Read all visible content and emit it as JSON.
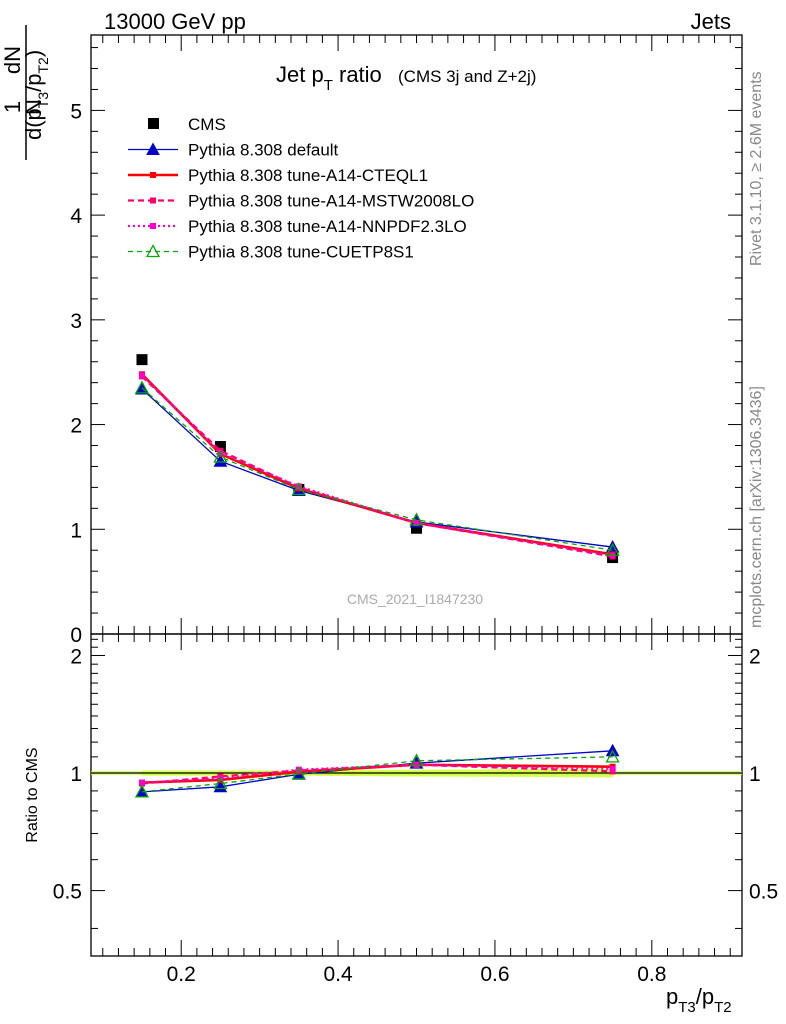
{
  "header": {
    "left": "13000 GeV pp",
    "right": "Jets"
  },
  "title": {
    "main": "Jet p",
    "sub": "T",
    "rest": " ratio",
    "small": "(CMS 3j and Z+2j)"
  },
  "side_labels": {
    "rivet": "Rivet 3.1.10, ≥ 2.6M events",
    "mcplots": "mcplots.cern.ch [arXiv:1306.3436]"
  },
  "analysis_id": "CMS_2021_I1847230",
  "y_label_main": {
    "one": "1",
    "N": "N",
    "dN": "dN",
    "d": "d(p",
    "t3": "T3",
    "slash": "/p",
    "t2": "T2",
    "close": ")"
  },
  "y_label_ratio": "Ratio to CMS",
  "x_label": {
    "p1": "p",
    "s1": "T3",
    "mid": "/p",
    "s2": "T2"
  },
  "colors": {
    "cms": "#000000",
    "default": "#0000cc",
    "cteql1": "#ff0000",
    "mstw": "#ff0066",
    "nnpdf": "#ff00cc",
    "cuetp8s1": "#00aa00",
    "band": "#ccff33"
  },
  "chart_data": [
    {
      "type": "line",
      "panel": "main",
      "xlim": [
        0.085,
        0.915
      ],
      "ylim": [
        0,
        5.72
      ],
      "yticks": [
        0,
        1,
        2,
        3,
        4,
        5
      ],
      "ytick_labels": [
        "0",
        "1",
        "2",
        "3",
        "4",
        "5"
      ],
      "legend_position": "top-left",
      "x": [
        0.15,
        0.25,
        0.35,
        0.5,
        0.75
      ],
      "series": [
        {
          "name": "CMS",
          "key": "cms",
          "style": "data",
          "values": [
            2.62,
            1.79,
            1.38,
            1.01,
            0.73
          ],
          "errors": [
            0.03,
            0.02,
            0.02,
            0.02,
            0.02
          ]
        },
        {
          "name": "Pythia 8.308 default",
          "key": "default",
          "style": "solid-thin",
          "marker": "triangle-filled",
          "values": [
            2.34,
            1.65,
            1.37,
            1.07,
            0.83
          ]
        },
        {
          "name": "Pythia 8.308 tune-A14-CTEQL1",
          "key": "cteql1",
          "style": "solid-thick",
          "marker": "square",
          "values": [
            2.48,
            1.72,
            1.39,
            1.06,
            0.76
          ]
        },
        {
          "name": "Pythia 8.308 tune-A14-MSTW2008LO",
          "key": "mstw",
          "style": "dashed",
          "marker": "square",
          "values": [
            2.46,
            1.75,
            1.4,
            1.06,
            0.74
          ]
        },
        {
          "name": "Pythia 8.308 tune-A14-NNPDF2.3LO",
          "key": "nnpdf",
          "style": "dotted",
          "marker": "square",
          "values": [
            2.47,
            1.73,
            1.41,
            1.06,
            0.75
          ]
        },
        {
          "name": "Pythia 8.308 tune-CUETP8S1",
          "key": "cuetp8s1",
          "style": "dashed-thin",
          "marker": "triangle-open",
          "values": [
            2.35,
            1.69,
            1.38,
            1.09,
            0.8
          ]
        }
      ]
    },
    {
      "type": "line",
      "panel": "ratio",
      "xlim": [
        0.085,
        0.915
      ],
      "ylim": [
        0.34,
        2.27
      ],
      "yticks": [
        0.5,
        1,
        2
      ],
      "ytick_labels": [
        "0.5",
        "1",
        "2"
      ],
      "xticks": [
        0.2,
        0.4,
        0.6,
        0.8
      ],
      "xtick_labels": [
        "0.2",
        "0.4",
        "0.6",
        "0.8"
      ],
      "x": [
        0.15,
        0.25,
        0.35,
        0.5,
        0.75
      ],
      "band": {
        "lower": [
          0.985,
          0.985,
          0.985,
          0.98,
          0.975
        ],
        "upper": [
          1.015,
          1.015,
          1.015,
          1.02,
          1.025
        ]
      },
      "series": [
        {
          "name": "Pythia 8.308 default",
          "key": "default",
          "style": "solid-thin",
          "marker": "triangle-filled",
          "values": [
            0.895,
            0.922,
            0.993,
            1.06,
            1.14
          ]
        },
        {
          "name": "Pythia 8.308 tune-A14-CTEQL1",
          "key": "cteql1",
          "style": "solid-thick",
          "marker": "square",
          "values": [
            0.945,
            0.96,
            1.008,
            1.05,
            1.038
          ]
        },
        {
          "name": "Pythia 8.308 tune-A14-MSTW2008LO",
          "key": "mstw",
          "style": "dashed",
          "marker": "square",
          "values": [
            0.94,
            0.98,
            1.015,
            1.05,
            1.01
          ]
        },
        {
          "name": "Pythia 8.308 tune-A14-NNPDF2.3LO",
          "key": "nnpdf",
          "style": "dotted",
          "marker": "square",
          "values": [
            0.945,
            0.97,
            1.02,
            1.05,
            1.025
          ]
        },
        {
          "name": "Pythia 8.308 tune-CUETP8S1",
          "key": "cuetp8s1",
          "style": "dashed-thin",
          "marker": "triangle-open",
          "values": [
            0.895,
            0.94,
            0.995,
            1.075,
            1.1
          ]
        }
      ]
    }
  ]
}
